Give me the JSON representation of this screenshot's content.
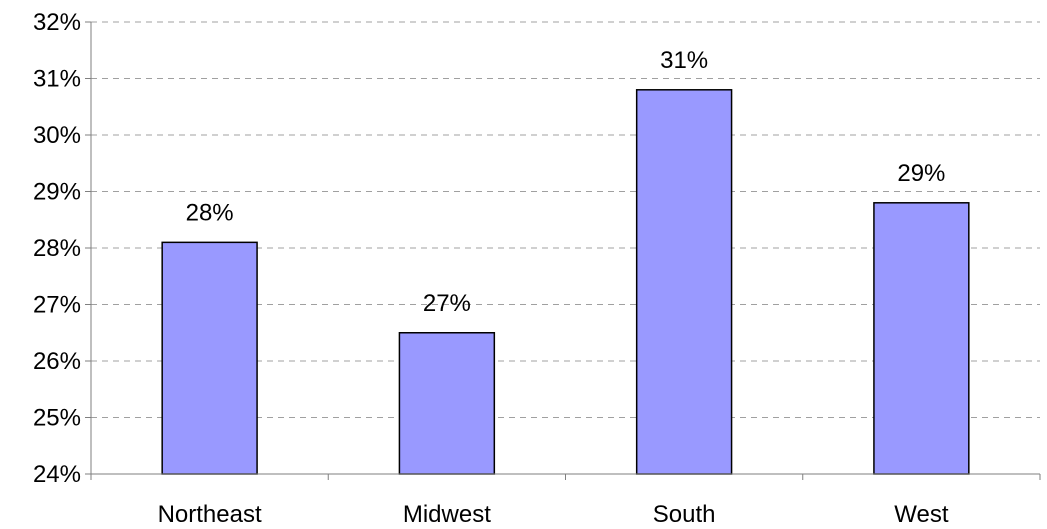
{
  "chart_data": {
    "type": "bar",
    "title": "",
    "xlabel": "",
    "ylabel": "",
    "categories": [
      "Northeast",
      "Midwest",
      "South",
      "West"
    ],
    "values": [
      28.1,
      26.5,
      30.8,
      28.8
    ],
    "data_labels": [
      "28%",
      "27%",
      "31%",
      "29%"
    ],
    "ylim": [
      24,
      32
    ],
    "y_ticks": [
      24,
      25,
      26,
      27,
      28,
      29,
      30,
      31,
      32
    ],
    "y_tick_labels": [
      "24%",
      "25%",
      "26%",
      "27%",
      "28%",
      "29%",
      "30%",
      "31%",
      "32%"
    ],
    "grid": true,
    "legend": "none",
    "bar_color": "#9999ff"
  }
}
